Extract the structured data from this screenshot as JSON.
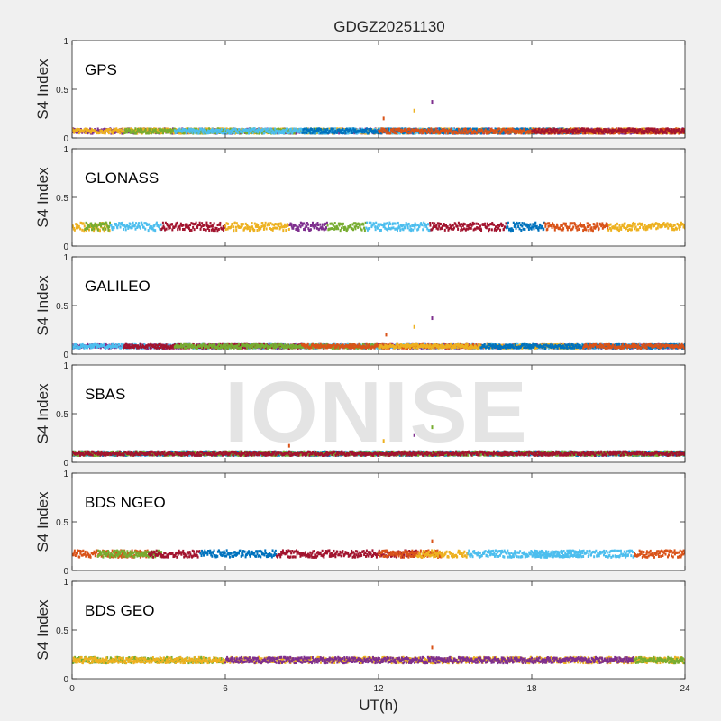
{
  "watermark": "IONISE",
  "colors": [
    "#0072BD",
    "#D95319",
    "#EDB120",
    "#7E2F8E",
    "#77AC30",
    "#4DBEEE",
    "#A2142F"
  ],
  "chart_data": {
    "type": "scatter",
    "title": "GDGZ20251130",
    "xlabel": "UT(h)",
    "ylabel": "S4 Index",
    "xlim": [
      0,
      24
    ],
    "ylim": [
      0,
      1
    ],
    "xticks": [
      "0",
      "6",
      "12",
      "18",
      "24"
    ],
    "yticks": [
      "0",
      "0.5",
      "1"
    ],
    "grid": false,
    "panels": [
      {
        "label": "GPS",
        "baseline": 0.07,
        "spread": 0.05,
        "outliers": [
          [
            12.2,
            0.2
          ],
          [
            13.4,
            0.28
          ],
          [
            14.1,
            0.37
          ]
        ],
        "segments": [
          [
            0.0,
            24.0,
            3
          ],
          [
            0.0,
            24.0,
            2
          ],
          [
            2.0,
            10.0,
            4
          ],
          [
            4.0,
            16.0,
            5
          ],
          [
            9.0,
            20.0,
            0
          ],
          [
            12.0,
            24.0,
            1
          ],
          [
            18.0,
            24.0,
            6
          ]
        ]
      },
      {
        "label": "GLONASS",
        "baseline": 0.2,
        "spread": 0.08,
        "outliers": [],
        "segments": [
          [
            0.0,
            1.5,
            2
          ],
          [
            0.5,
            1.5,
            4
          ],
          [
            1.5,
            3.5,
            5
          ],
          [
            3.5,
            6.0,
            6
          ],
          [
            6.0,
            8.5,
            2
          ],
          [
            8.5,
            10.0,
            3
          ],
          [
            10.0,
            11.5,
            4
          ],
          [
            11.5,
            14.0,
            5
          ],
          [
            14.0,
            17.0,
            6
          ],
          [
            17.0,
            18.5,
            0
          ],
          [
            18.5,
            21.0,
            1
          ],
          [
            21.0,
            24.0,
            2
          ]
        ]
      },
      {
        "label": "GALILEO",
        "baseline": 0.08,
        "spread": 0.04,
        "outliers": [
          [
            12.3,
            0.2
          ],
          [
            13.4,
            0.28
          ],
          [
            14.1,
            0.37
          ]
        ],
        "segments": [
          [
            0.0,
            24.0,
            3
          ],
          [
            0.0,
            24.0,
            5
          ],
          [
            2.0,
            9.0,
            6
          ],
          [
            4.0,
            12.0,
            4
          ],
          [
            9.0,
            16.0,
            1
          ],
          [
            12.0,
            20.0,
            2
          ],
          [
            16.0,
            24.0,
            0
          ],
          [
            20.0,
            24.0,
            1
          ]
        ]
      },
      {
        "label": "SBAS",
        "baseline": 0.09,
        "spread": 0.04,
        "outliers": [
          [
            8.5,
            0.17
          ],
          [
            12.2,
            0.22
          ],
          [
            13.4,
            0.28
          ],
          [
            14.1,
            0.36
          ]
        ],
        "segments": [
          [
            0.0,
            24.0,
            5
          ],
          [
            0.0,
            24.0,
            0
          ],
          [
            0.0,
            24.0,
            4
          ],
          [
            0.0,
            24.0,
            6
          ]
        ]
      },
      {
        "label": "BDS NGEO",
        "baseline": 0.17,
        "spread": 0.07,
        "outliers": [
          [
            14.1,
            0.3
          ]
        ],
        "segments": [
          [
            0.0,
            3.0,
            1
          ],
          [
            1.0,
            3.5,
            4
          ],
          [
            3.0,
            5.0,
            6
          ],
          [
            5.0,
            8.0,
            0
          ],
          [
            8.0,
            13.5,
            6
          ],
          [
            12.0,
            14.5,
            1
          ],
          [
            13.5,
            15.5,
            2
          ],
          [
            15.5,
            20.0,
            5
          ],
          [
            18.0,
            22.0,
            5
          ],
          [
            22.0,
            24.0,
            1
          ]
        ]
      },
      {
        "label": "BDS GEO",
        "baseline": 0.19,
        "spread": 0.06,
        "outliers": [
          [
            14.1,
            0.32
          ]
        ],
        "segments": [
          [
            0.0,
            6.0,
            4
          ],
          [
            0.0,
            24.0,
            2
          ],
          [
            6.0,
            22.0,
            3
          ],
          [
            22.0,
            24.0,
            4
          ]
        ]
      }
    ]
  }
}
